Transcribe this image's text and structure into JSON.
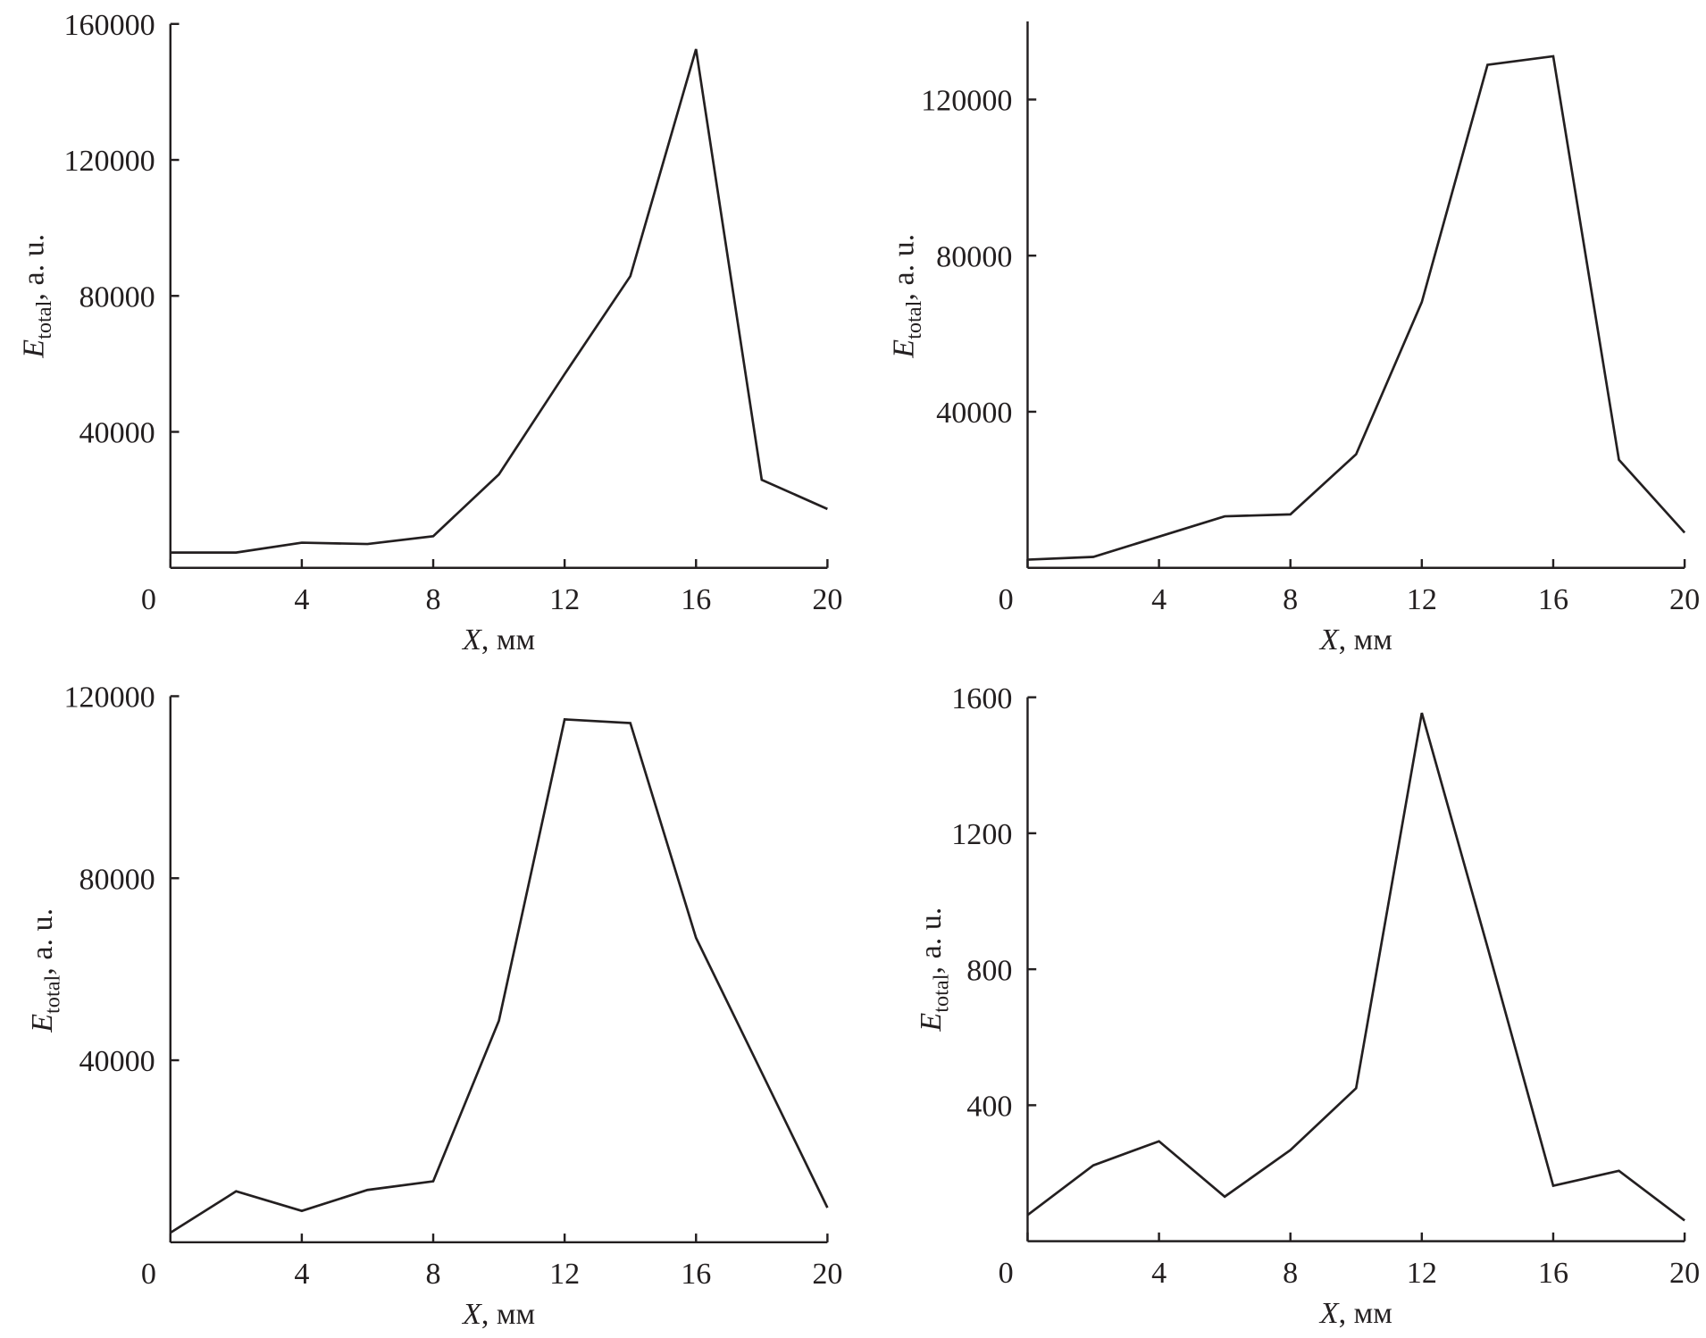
{
  "chart_data": [
    {
      "type": "line",
      "color": "#231f20",
      "x": [
        0,
        2,
        4,
        6,
        8,
        10,
        12,
        14,
        16,
        18,
        20
      ],
      "values": [
        4500,
        4500,
        7400,
        7000,
        9300,
        27500,
        57000,
        85800,
        152600,
        25900,
        17300
      ],
      "xlim": [
        0,
        20
      ],
      "xticks": [
        0,
        4,
        8,
        12,
        16,
        20
      ],
      "ylim": [
        0,
        160000
      ],
      "yticks": [
        40000,
        80000,
        120000,
        160000
      ],
      "x_label": [
        "X",
        ", мм"
      ],
      "y_label": [
        "E",
        "total",
        ", a. u."
      ]
    },
    {
      "type": "line",
      "color": "#231f20",
      "x": [
        0,
        2,
        4,
        6,
        8,
        10,
        12,
        14,
        16,
        18,
        20
      ],
      "values": [
        2100,
        2800,
        8000,
        13200,
        13700,
        29100,
        68100,
        128900,
        131100,
        27700,
        9000
      ],
      "xlim": [
        0,
        20
      ],
      "xticks": [
        0,
        4,
        8,
        12,
        16,
        20
      ],
      "ylim": [
        0,
        140000
      ],
      "yticks": [
        40000,
        80000,
        120000
      ],
      "x_label": [
        "X",
        ", мм"
      ],
      "y_label": [
        "E",
        "total",
        ", a. u."
      ]
    },
    {
      "type": "line",
      "color": "#231f20",
      "x": [
        0,
        2,
        4,
        6,
        8,
        10,
        12,
        14,
        16,
        18,
        20
      ],
      "values": [
        2100,
        11200,
        6900,
        11500,
        13400,
        48700,
        114900,
        114100,
        66900,
        37300,
        7600
      ],
      "xlim": [
        0,
        20
      ],
      "xticks": [
        0,
        4,
        8,
        12,
        16,
        20
      ],
      "ylim": [
        0,
        120000
      ],
      "yticks": [
        40000,
        80000,
        120000
      ],
      "x_label": [
        "X",
        ", мм"
      ],
      "y_label": [
        "E",
        "total",
        ", a. u."
      ]
    },
    {
      "type": "line",
      "color": "#231f20",
      "x": [
        0,
        2,
        4,
        6,
        8,
        10,
        12,
        14,
        16,
        18,
        20
      ],
      "values": [
        77,
        223,
        294,
        131,
        268,
        450,
        1554,
        865,
        163,
        207,
        61
      ],
      "xlim": [
        0,
        20
      ],
      "xticks": [
        0,
        4,
        8,
        12,
        16,
        20
      ],
      "ylim": [
        0,
        1600
      ],
      "yticks": [
        400,
        800,
        1200,
        1600
      ],
      "x_label": [
        "X",
        ", мм"
      ],
      "y_label": [
        "E",
        "total",
        ", a. u."
      ]
    }
  ]
}
